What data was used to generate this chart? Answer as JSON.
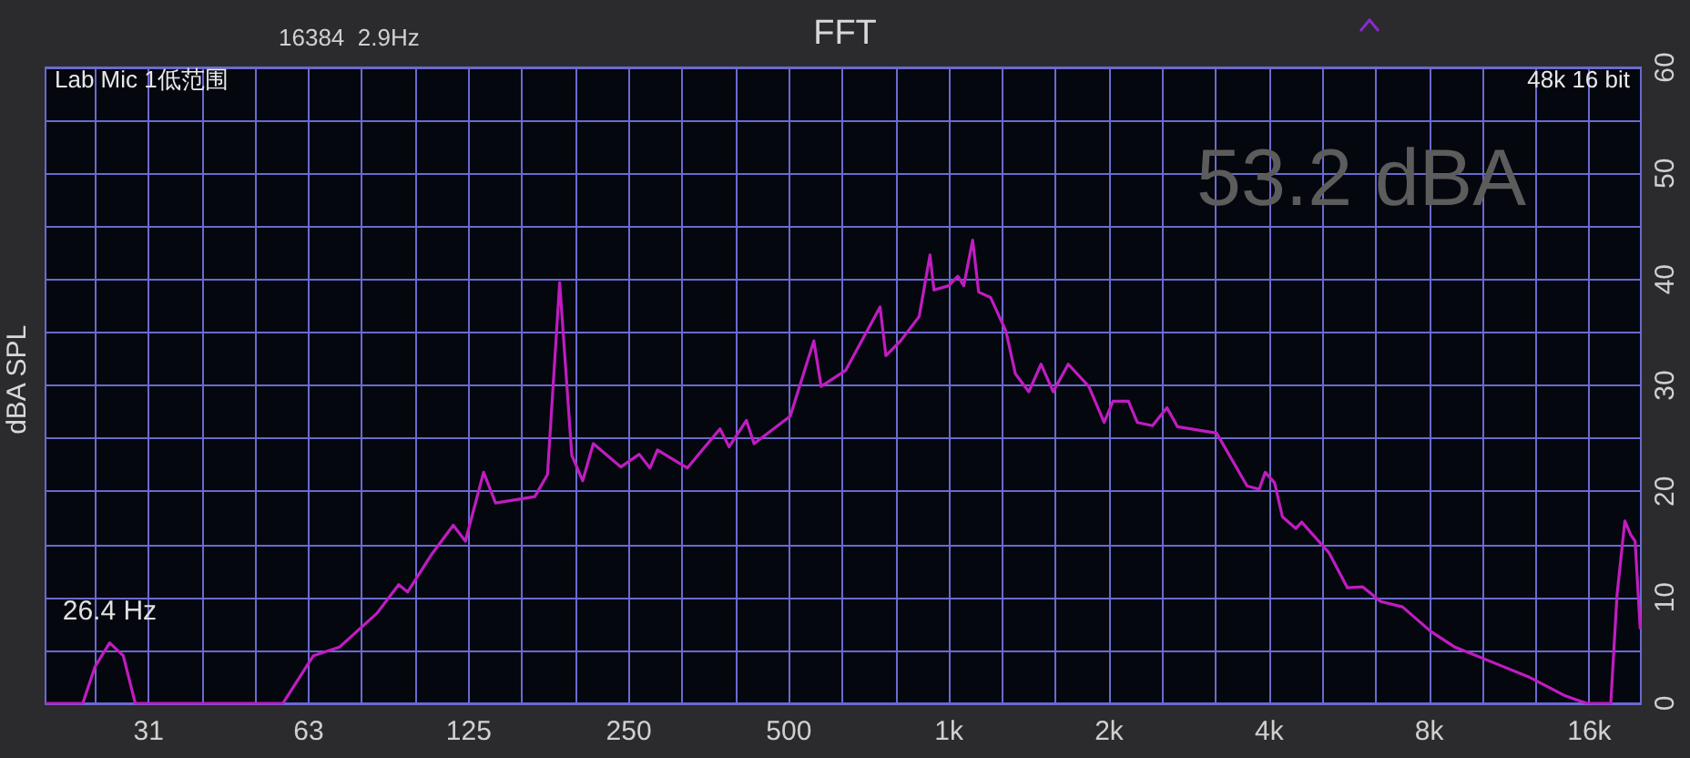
{
  "chart_data": {
    "type": "line",
    "title": "FFT",
    "ylabel": "dBA SPL",
    "annotations": [
      "16384  2.9Hz",
      "Lab Mic 1低范围",
      "48k 16 bit",
      "53.2 dBA",
      {
        "text": "26.4 Hz",
        "x": 26.4,
        "y": 5.7
      }
    ],
    "x": [
      20,
      23.5,
      24.8,
      26.4,
      28,
      29.5,
      55.9,
      63.8,
      71.4,
      84,
      92.3,
      95.9,
      106.6,
      116.9,
      123.2,
      133.3,
      140.4,
      166.4,
      175.8,
      185.3,
      195.3,
      204.7,
      214.4,
      241.5,
      261.5,
      274,
      283,
      322,
      371,
      386,
      416,
      430,
      503,
      557,
      575,
      639,
      742,
      761,
      811,
      879,
      921,
      937,
      999,
      1039,
      1066,
      1108,
      1137,
      1197,
      1280,
      1333,
      1413,
      1490,
      1570,
      1676,
      1832,
      1958,
      2035,
      2175,
      2260,
      2414,
      2570,
      2690,
      3186,
      3636,
      3832,
      3933,
      4096,
      4237,
      4489,
      4606,
      5184,
      5615,
      5993,
      6486,
      7126,
      8047,
      8941,
      10495,
      12301,
      14424,
      15813,
      17559,
      18040,
      18663,
      19150,
      19510,
      19950
    ],
    "series": [
      {
        "color": "#c01cc0",
        "values": [
          0,
          0,
          3.5,
          5.7,
          4.5,
          0,
          0,
          4.5,
          5.3,
          8.5,
          11.2,
          10.5,
          14.1,
          16.8,
          15.3,
          21.8,
          18.9,
          19.5,
          21.6,
          39.7,
          23.4,
          21.0,
          24.5,
          22.3,
          23.5,
          22.2,
          23.9,
          22.2,
          25.9,
          24.2,
          26.7,
          24.5,
          27.1,
          34.2,
          29.9,
          31.4,
          37.4,
          32.8,
          34.2,
          36.5,
          42.3,
          39.0,
          39.4,
          40.3,
          39.4,
          43.7,
          38.8,
          38.3,
          35.1,
          31.1,
          29.4,
          32.0,
          29.4,
          32.0,
          29.9,
          26.5,
          28.5,
          28.5,
          26.5,
          26.2,
          27.9,
          26.1,
          25.5,
          20.5,
          20.2,
          21.8,
          20.8,
          17.6,
          16.5,
          17.1,
          14.2,
          10.9,
          11.0,
          9.6,
          9.1,
          6.8,
          5.3,
          3.9,
          2.5,
          0.7,
          0,
          0,
          10.2,
          17.2,
          15.9,
          15.3,
          7.0
        ]
      }
    ],
    "log": "x",
    "xlim": [
      20,
      20000
    ],
    "xticks": [
      {
        "value": 24.8,
        "label": null
      },
      {
        "value": 31.25,
        "label": "31"
      },
      {
        "value": 39.37,
        "label": null
      },
      {
        "value": 49.6,
        "label": null
      },
      {
        "value": 62.5,
        "label": "63"
      },
      {
        "value": 78.7,
        "label": null
      },
      {
        "value": 99.2,
        "label": null
      },
      125,
      {
        "value": 157.5,
        "label": null
      },
      {
        "value": 198.4,
        "label": null
      },
      250,
      {
        "value": 315,
        "label": null
      },
      {
        "value": 396.9,
        "label": null
      },
      500,
      {
        "value": 630,
        "label": null
      },
      {
        "value": 793.7,
        "label": null
      },
      {
        "value": 1000,
        "label": "1k"
      },
      {
        "value": 1260,
        "label": null
      },
      {
        "value": 1587,
        "label": null
      },
      {
        "value": 2000,
        "label": "2k"
      },
      {
        "value": 2520,
        "label": null
      },
      {
        "value": 3175,
        "label": null
      },
      {
        "value": 4000,
        "label": "4k"
      },
      {
        "value": 5040,
        "label": null
      },
      {
        "value": 6350,
        "label": null
      },
      {
        "value": 8000,
        "label": "8k"
      },
      {
        "value": 10079,
        "label": null
      },
      {
        "value": 12699,
        "label": null
      },
      {
        "value": 16000,
        "label": "16k"
      }
    ],
    "ylim": [
      0,
      60
    ],
    "yticks": [
      0,
      {
        "value": 5,
        "label": null
      },
      10,
      {
        "value": 15,
        "label": null
      },
      20,
      {
        "value": 25,
        "label": null
      },
      30,
      {
        "value": 35,
        "label": null
      },
      40,
      {
        "value": 45,
        "label": null
      },
      50,
      {
        "value": 55,
        "label": null
      },
      60
    ],
    "grid": true,
    "marker": "none"
  }
}
